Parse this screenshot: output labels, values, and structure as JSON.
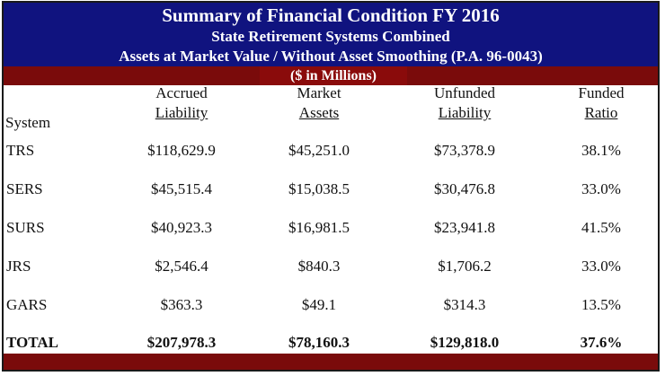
{
  "title": "Summary of Financial Condition FY 2016",
  "subtitle": "State Retirement Systems Combined",
  "subtitle2": "Assets at Market Value / Without Asset Smoothing (P.A. 96-0043)",
  "units": "($ in Millions)",
  "colors": {
    "header_band": "#10137f",
    "accent_band": "#7a0b0b",
    "text": "#111111"
  },
  "columns": {
    "system": {
      "l1": "",
      "l2": "System"
    },
    "accrued": {
      "l1": "Accrued",
      "l2": "Liability"
    },
    "market": {
      "l1": "Market",
      "l2": "Assets"
    },
    "unfunded": {
      "l1": "Unfunded",
      "l2": "Liability"
    },
    "ratio": {
      "l1": "Funded",
      "l2": "Ratio"
    }
  },
  "rows": [
    {
      "system": "TRS",
      "accrued": "$118,629.9",
      "market": "$45,251.0",
      "unfunded": "$73,378.9",
      "ratio": "38.1%"
    },
    {
      "system": "SERS",
      "accrued": "$45,515.4",
      "market": "$15,038.5",
      "unfunded": "$30,476.8",
      "ratio": "33.0%"
    },
    {
      "system": "SURS",
      "accrued": "$40,923.3",
      "market": "$16,981.5",
      "unfunded": "$23,941.8",
      "ratio": "41.5%"
    },
    {
      "system": "JRS",
      "accrued": "$2,546.4",
      "market": "$840.3",
      "unfunded": "$1,706.2",
      "ratio": "33.0%"
    },
    {
      "system": "GARS",
      "accrued": "$363.3",
      "market": "$49.1",
      "unfunded": "$314.3",
      "ratio": "13.5%"
    }
  ],
  "total": {
    "system": "TOTAL",
    "accrued": "$207,978.3",
    "market": "$78,160.3",
    "unfunded": "$129,818.0",
    "ratio": "37.6%"
  }
}
